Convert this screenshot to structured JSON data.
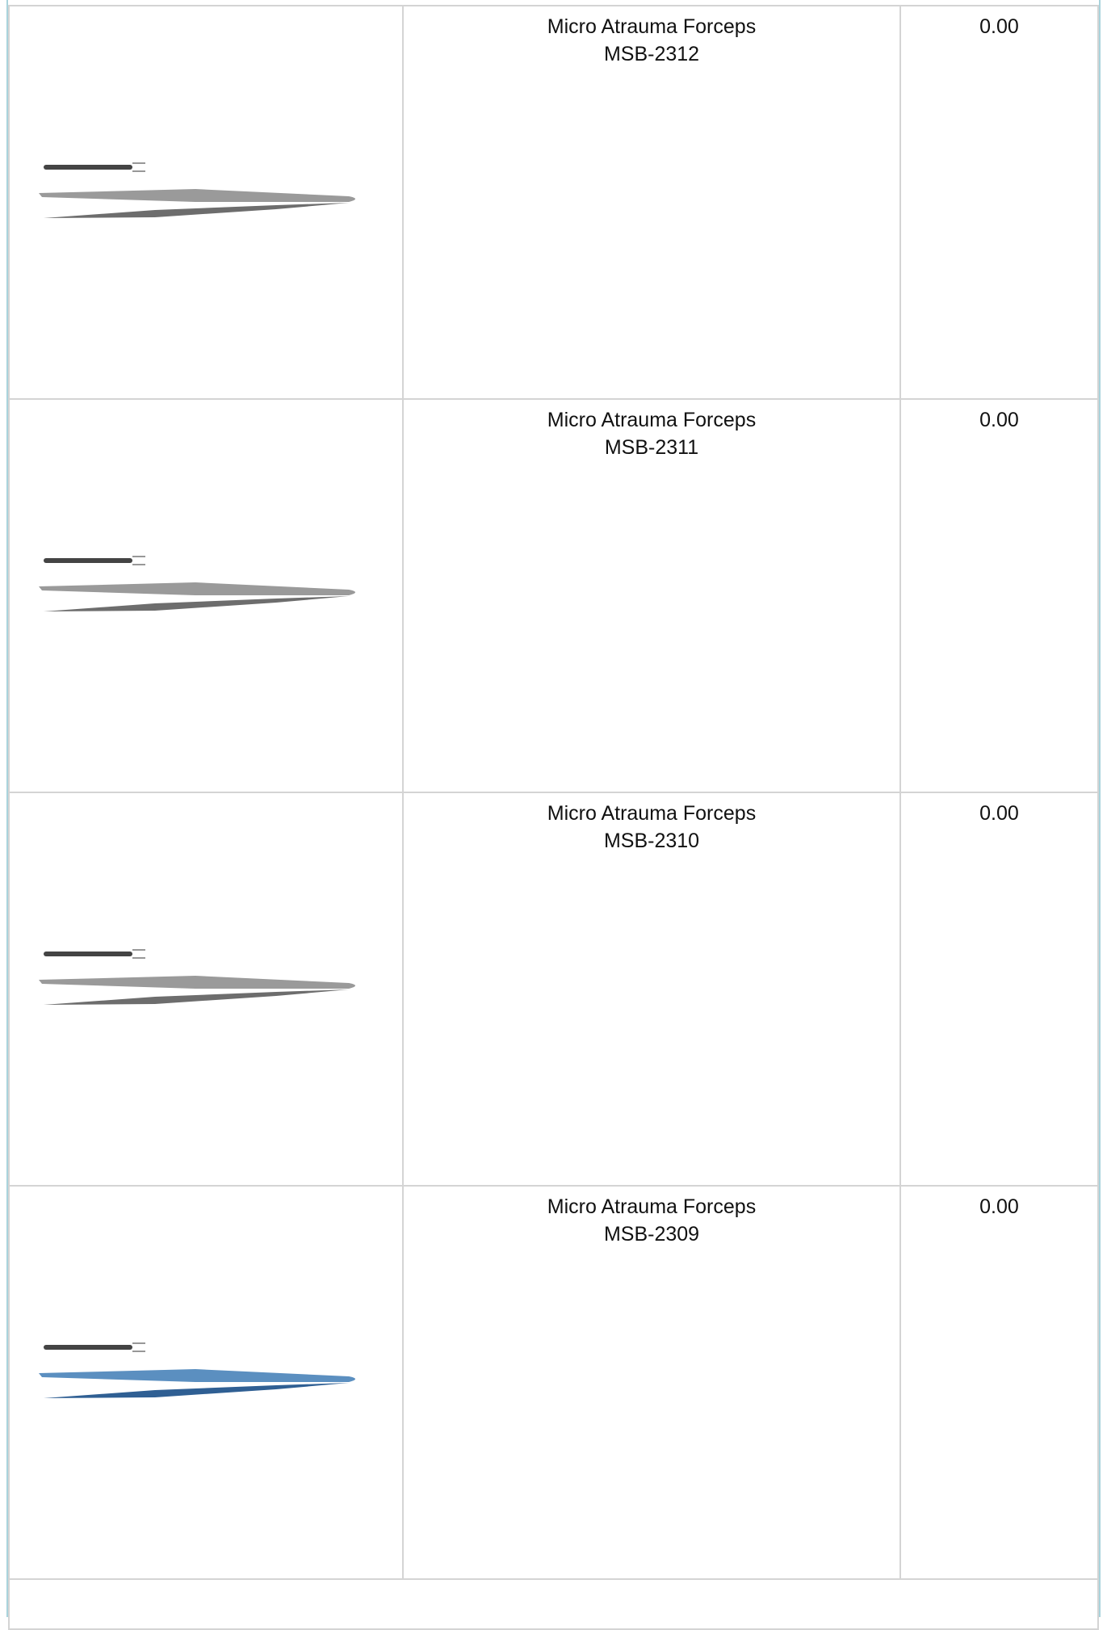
{
  "table": {
    "rows": [
      {
        "name": "Micro Atrauma Forceps",
        "code": "MSB-2312",
        "price": "0.00",
        "color": "gray"
      },
      {
        "name": "Micro Atrauma Forceps",
        "code": "MSB-2311",
        "price": "0.00",
        "color": "gray"
      },
      {
        "name": "Micro Atrauma Forceps",
        "code": "MSB-2310",
        "price": "0.00",
        "color": "gray"
      },
      {
        "name": "Micro Atrauma Forceps",
        "code": "MSB-2309",
        "price": "0.00",
        "color": "blue"
      }
    ]
  }
}
